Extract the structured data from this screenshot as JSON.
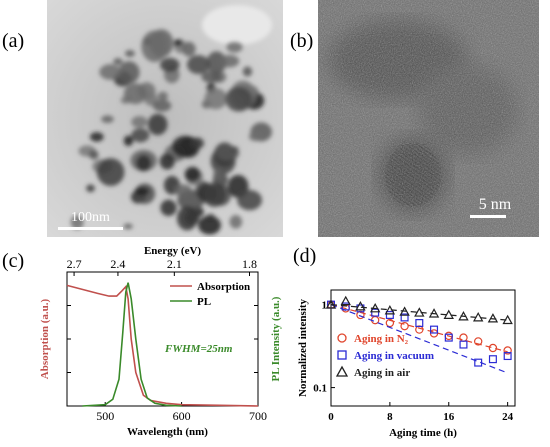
{
  "panels": {
    "a": {
      "label": "(a)",
      "scale_bar": "100nm"
    },
    "b": {
      "label": "(b)",
      "scale_bar": "5 nm"
    },
    "c": {
      "label": "(c)"
    },
    "d": {
      "label": "(d)"
    }
  },
  "chart_data": [
    {
      "type": "line",
      "panel": "c",
      "xlabel": "Wavelength (nm)",
      "x_ticks": [
        "500",
        "600",
        "700"
      ],
      "xlim": [
        450,
        700
      ],
      "top_xlabel": "Energy (eV)",
      "top_ticks": [
        "2.7",
        "2.4",
        "2.1",
        "1.8"
      ],
      "top_tick_values": [
        2.7,
        2.4,
        2.1,
        1.8
      ],
      "ylabel_left": "Absorption (a.u.)",
      "ylabel_right": "PL Intensity (a.u.)",
      "annotation": "FWHM=25nm",
      "legend": "top-right",
      "colors": {
        "absorption": "#c0504d",
        "pl": "#3a8a2a"
      },
      "series": [
        {
          "name": "Absorption",
          "x": [
            450,
            470,
            490,
            505,
            515,
            522,
            527,
            530,
            534,
            540,
            550,
            560,
            580,
            600,
            650,
            700
          ],
          "y": [
            0.9,
            0.87,
            0.84,
            0.82,
            0.82,
            0.86,
            0.89,
            0.8,
            0.5,
            0.25,
            0.08,
            0.04,
            0.02,
            0.01,
            0.005,
            0.0
          ]
        },
        {
          "name": "PL",
          "x": [
            470,
            500,
            510,
            518,
            523,
            527,
            530,
            534,
            540,
            547,
            555,
            565,
            580,
            600
          ],
          "y": [
            0.0,
            0.01,
            0.05,
            0.2,
            0.55,
            0.85,
            0.92,
            0.8,
            0.5,
            0.2,
            0.06,
            0.02,
            0.005,
            0.0
          ]
        }
      ]
    },
    {
      "type": "scatter",
      "panel": "d",
      "xlabel": "Aging time (h)",
      "ylabel": "Normalized intensity",
      "x_ticks": [
        "0",
        "8",
        "16",
        "24"
      ],
      "xlim": [
        0,
        25
      ],
      "y_scale": "log",
      "y_ticks": [
        "1",
        "0.1"
      ],
      "ylim": [
        0.06,
        1.5
      ],
      "legend": "bottom-left",
      "series": [
        {
          "name": "Aging in N₂",
          "color": "#e0452c",
          "marker": "circle",
          "x": [
            0,
            2,
            4,
            6,
            8,
            10,
            12,
            14,
            16,
            18,
            20,
            22,
            24
          ],
          "y": [
            1.0,
            0.9,
            0.75,
            0.65,
            0.6,
            0.55,
            0.5,
            0.45,
            0.42,
            0.4,
            0.36,
            0.3,
            0.28
          ],
          "fit": {
            "x": [
              0,
              24
            ],
            "y": [
              1.0,
              0.27
            ]
          }
        },
        {
          "name": "Aging in vacuum",
          "color": "#2b2bd4",
          "marker": "square",
          "x": [
            0,
            2,
            4,
            6,
            8,
            10,
            12,
            14,
            16,
            18,
            20,
            22,
            24
          ],
          "y": [
            1.0,
            0.95,
            0.9,
            0.8,
            0.75,
            0.7,
            0.6,
            0.5,
            0.4,
            0.33,
            0.2,
            0.22,
            0.24
          ],
          "fit": {
            "x": [
              0,
              24
            ],
            "y": [
              1.0,
              0.15
            ]
          }
        },
        {
          "name": "Aging in air",
          "color": "#222222",
          "marker": "triangle",
          "x": [
            0,
            2,
            4,
            6,
            8,
            10,
            12,
            14,
            16,
            18,
            20,
            22,
            24
          ],
          "y": [
            1.0,
            1.1,
            0.95,
            0.9,
            0.85,
            0.82,
            0.8,
            0.78,
            0.75,
            0.72,
            0.7,
            0.68,
            0.65
          ],
          "fit": {
            "x": [
              0,
              24
            ],
            "y": [
              1.0,
              0.65
            ]
          }
        }
      ]
    }
  ]
}
